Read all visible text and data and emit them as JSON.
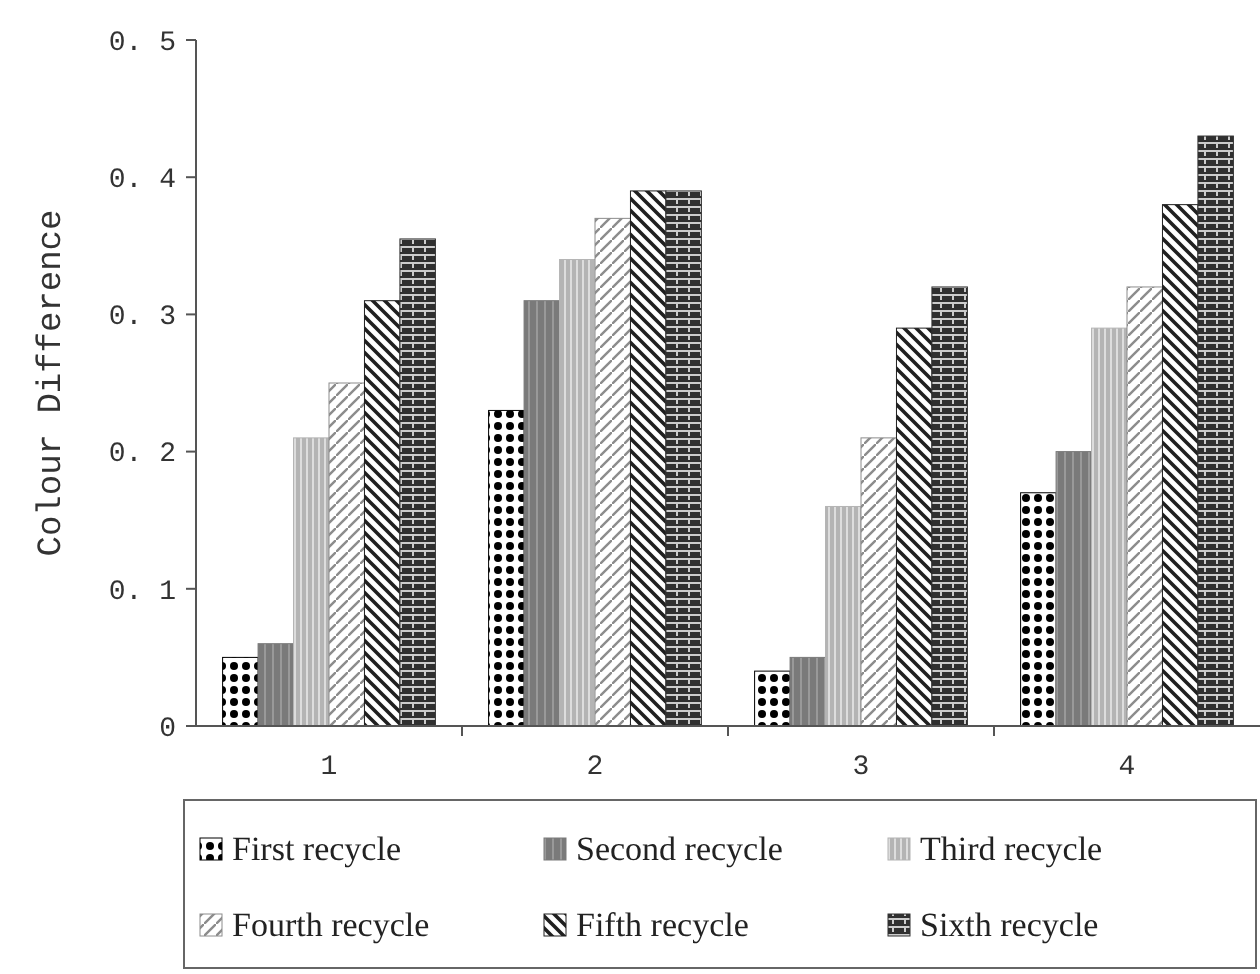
{
  "chart_data": {
    "type": "bar",
    "ylabel": "Colour Difference",
    "categories": [
      "1",
      "2",
      "3",
      "4"
    ],
    "series": [
      {
        "name": "First recycle",
        "color": "#000000",
        "values": [
          0.05,
          0.23,
          0.04,
          0.17
        ]
      },
      {
        "name": "Second recycle",
        "color": "#7a7a7a",
        "values": [
          0.06,
          0.31,
          0.05,
          0.2
        ]
      },
      {
        "name": "Third recycle",
        "color": "#b4b4b4",
        "values": [
          0.21,
          0.34,
          0.16,
          0.29
        ]
      },
      {
        "name": "Fourth recycle",
        "color": "#8c8c8c",
        "values": [
          0.25,
          0.37,
          0.21,
          0.32
        ]
      },
      {
        "name": "Fifth recycle",
        "color": "#202020",
        "values": [
          0.31,
          0.39,
          0.29,
          0.38
        ]
      },
      {
        "name": "Sixth recycle",
        "color": "#303030",
        "values": [
          0.355,
          0.39,
          0.32,
          0.43
        ]
      }
    ],
    "ylim": [
      0,
      0.5
    ],
    "yticks": [
      0,
      0.1,
      0.2,
      0.3,
      0.4,
      0.5
    ],
    "grid": false,
    "legend": "bottom"
  }
}
